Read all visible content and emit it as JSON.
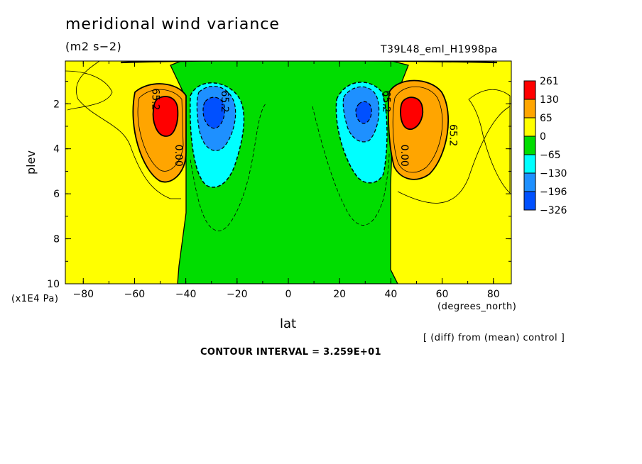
{
  "header": {
    "title": "meridional wind variance",
    "subtitle": "(m2 s−2)",
    "run_id": "T39L48_eml_H1998pa"
  },
  "footer": {
    "diff_note": "[ (diff) from (mean) control ]",
    "contour_interval": "CONTOUR INTERVAL = 3.259E+01"
  },
  "chart_data": {
    "type": "heatmap",
    "title": "meridional wind variance",
    "subtitle": "(m2 s−2)",
    "xlabel": "lat",
    "xunits": "(degrees_north)",
    "ylabel": "plev",
    "yunits": "(x1E4 Pa)",
    "xlim": [
      -87,
      87
    ],
    "ylim": [
      10,
      0.1
    ],
    "x_ticks": [
      -80,
      -60,
      -40,
      -20,
      0,
      20,
      40,
      60,
      80
    ],
    "x_tick_labels": [
      "−80",
      "−60",
      "−40",
      "−20",
      "0",
      "20",
      "40",
      "60",
      "80"
    ],
    "y_ticks": [
      2,
      4,
      6,
      8,
      10
    ],
    "y_tick_labels": [
      "2",
      "4",
      "6",
      "8",
      "10"
    ],
    "colorbar": {
      "colors": [
        "#ff0000",
        "#ffa500",
        "#ffff00",
        "#00dd00",
        "#00ffff",
        "#1e90ff",
        "#0050ff"
      ],
      "labels": [
        "261",
        "130",
        "65",
        "0",
        "−65",
        "−130",
        "−196",
        "−326"
      ]
    },
    "colors": {
      "red": "#ff0000",
      "orange": "#ffa500",
      "yellow": "#ffff00",
      "green": "#00dd00",
      "cyan": "#00ffff",
      "blue": "#1e90ff",
      "deepblue": "#0050ff"
    },
    "contour_labels": [
      {
        "text": "65.2",
        "lat": -53,
        "p": 1.8
      },
      {
        "text": "65.2",
        "lat": -26,
        "p": 1.9
      },
      {
        "text": "65.2",
        "lat": 37,
        "p": 1.9
      },
      {
        "text": "65.2",
        "lat": 63,
        "p": 3.4
      },
      {
        "text": "0.00",
        "lat": -44,
        "p": 4.3
      },
      {
        "text": "0.00",
        "lat": 44,
        "p": 4.3
      }
    ],
    "contour_interval": 32.59,
    "note": "[ (diff) from (mean) control ]"
  }
}
